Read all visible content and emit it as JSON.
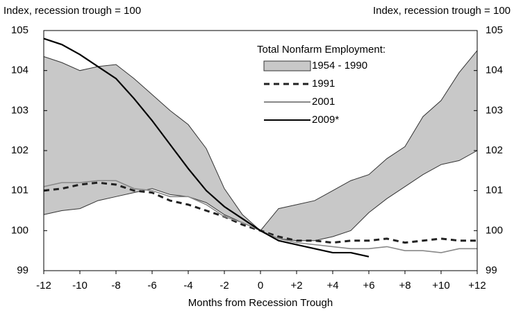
{
  "chart_data": {
    "type": "line",
    "y_label": "Index, recession trough = 100",
    "y2_label": "Index, recession trough = 100",
    "x_label": "Months from Recession Trough",
    "legend_title": "Total Nonfarm Employment:",
    "x": [
      -12,
      -11,
      -10,
      -9,
      -8,
      -7,
      -6,
      -5,
      -4,
      -3,
      -2,
      -1,
      0,
      1,
      2,
      3,
      4,
      5,
      6,
      7,
      8,
      9,
      10,
      11,
      12
    ],
    "xlim": [
      -12,
      12
    ],
    "xticks": [
      -12,
      -10,
      -8,
      -6,
      -4,
      -2,
      0,
      {
        "value": 2,
        "label": "+2"
      },
      {
        "value": 4,
        "label": "+4"
      },
      {
        "value": 6,
        "label": "+6"
      },
      {
        "value": 8,
        "label": "+8"
      },
      {
        "value": 10,
        "label": "+10"
      },
      {
        "value": 12,
        "label": "+12"
      }
    ],
    "ylim": [
      99,
      105
    ],
    "yticks": [
      99,
      100,
      101,
      102,
      103,
      104,
      105
    ],
    "y2lim": [
      99,
      105
    ],
    "y2ticks": [
      99,
      100,
      101,
      102,
      103,
      104,
      105
    ],
    "series": [
      {
        "name": "1954 - 1990",
        "kind": "band",
        "color": "#c8c8c8",
        "upper": [
          104.35,
          104.2,
          104.0,
          104.1,
          104.15,
          103.8,
          103.4,
          103.0,
          102.65,
          102.05,
          101.05,
          100.4,
          100,
          100.55,
          100.65,
          100.75,
          101.0,
          101.25,
          101.4,
          101.8,
          102.1,
          102.85,
          103.25,
          103.95,
          104.5
        ],
        "lower": [
          100.4,
          100.5,
          100.55,
          100.75,
          100.85,
          100.95,
          101.05,
          100.9,
          100.85,
          100.7,
          100.4,
          100.2,
          100,
          99.8,
          99.75,
          99.75,
          99.85,
          100.0,
          100.45,
          100.8,
          101.1,
          101.4,
          101.65,
          101.75,
          102.0
        ]
      },
      {
        "name": "1991",
        "kind": "line",
        "color": "#222222",
        "dashed": true,
        "values": [
          101.0,
          101.05,
          101.15,
          101.2,
          101.15,
          101.0,
          100.95,
          100.75,
          100.65,
          100.5,
          100.35,
          100.15,
          100,
          99.85,
          99.75,
          99.75,
          99.7,
          99.75,
          99.75,
          99.8,
          99.7,
          99.75,
          99.8,
          99.75,
          99.75
        ]
      },
      {
        "name": "2001",
        "kind": "line",
        "color": "#888888",
        "dashed": false,
        "values": [
          101.1,
          101.2,
          101.2,
          101.25,
          101.25,
          101.05,
          101.0,
          100.85,
          100.85,
          100.65,
          100.35,
          100.2,
          100,
          99.8,
          99.7,
          99.65,
          99.6,
          99.55,
          99.55,
          99.6,
          99.5,
          99.5,
          99.45,
          99.55,
          99.55
        ]
      },
      {
        "name": "2009*",
        "kind": "line",
        "color": "#000000",
        "dashed": false,
        "values": [
          104.8,
          104.65,
          104.4,
          104.1,
          103.8,
          103.3,
          102.75,
          102.15,
          101.55,
          101.0,
          100.6,
          100.3,
          100,
          99.75,
          99.65,
          99.55,
          99.45,
          99.45,
          99.35,
          null,
          null,
          null,
          null,
          null,
          null
        ]
      }
    ]
  }
}
